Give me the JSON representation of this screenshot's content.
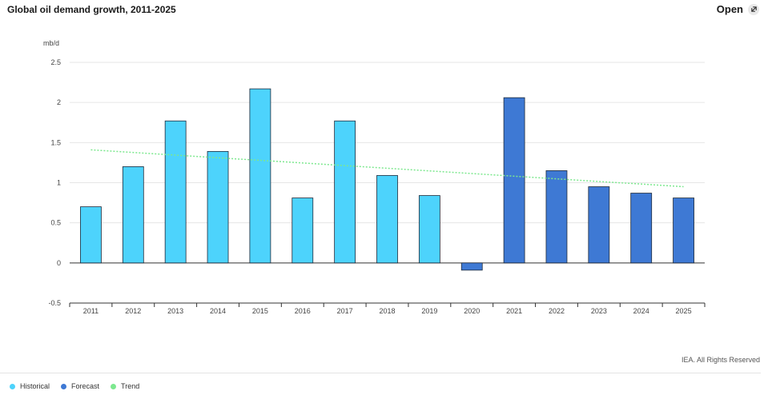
{
  "header": {
    "title": "Global oil demand growth, 2011-2025",
    "open_label": "Open",
    "open_icon": "expand-icon"
  },
  "chart_data": {
    "type": "bar",
    "ylabel": "mb/d",
    "ylim": [
      -0.5,
      2.5
    ],
    "yticks": [
      2.5,
      2,
      1.5,
      1,
      0.5,
      0,
      -0.5
    ],
    "ytick_labels": [
      "2.5",
      "2",
      "1.5",
      "1",
      "0.5",
      "0",
      "-0.5"
    ],
    "categories": [
      "2011",
      "2012",
      "2013",
      "2014",
      "2015",
      "2016",
      "2017",
      "2018",
      "2019",
      "2020",
      "2021",
      "2022",
      "2023",
      "2024",
      "2025"
    ],
    "series": [
      {
        "name": "Historical",
        "color": "#4dd3fc",
        "values": [
          0.7,
          1.2,
          1.77,
          1.39,
          2.17,
          0.81,
          1.77,
          1.09,
          0.84,
          null,
          null,
          null,
          null,
          null,
          null
        ]
      },
      {
        "name": "Forecast",
        "color": "#3e79d4",
        "values": [
          null,
          null,
          null,
          null,
          null,
          null,
          null,
          null,
          null,
          -0.09,
          2.06,
          1.15,
          0.95,
          0.87,
          0.81
        ]
      }
    ],
    "trend": {
      "name": "Trend",
      "color": "#7de88f",
      "start": 1.41,
      "end": 0.95
    },
    "grid": true,
    "legend_position": "bottom-left"
  },
  "footer": {
    "credit": "IEA. All Rights Reserved"
  },
  "legend": [
    {
      "label": "Historical",
      "color": "#4dd3fc"
    },
    {
      "label": "Forecast",
      "color": "#3e79d4"
    },
    {
      "label": "Trend",
      "color": "#7de88f"
    }
  ]
}
